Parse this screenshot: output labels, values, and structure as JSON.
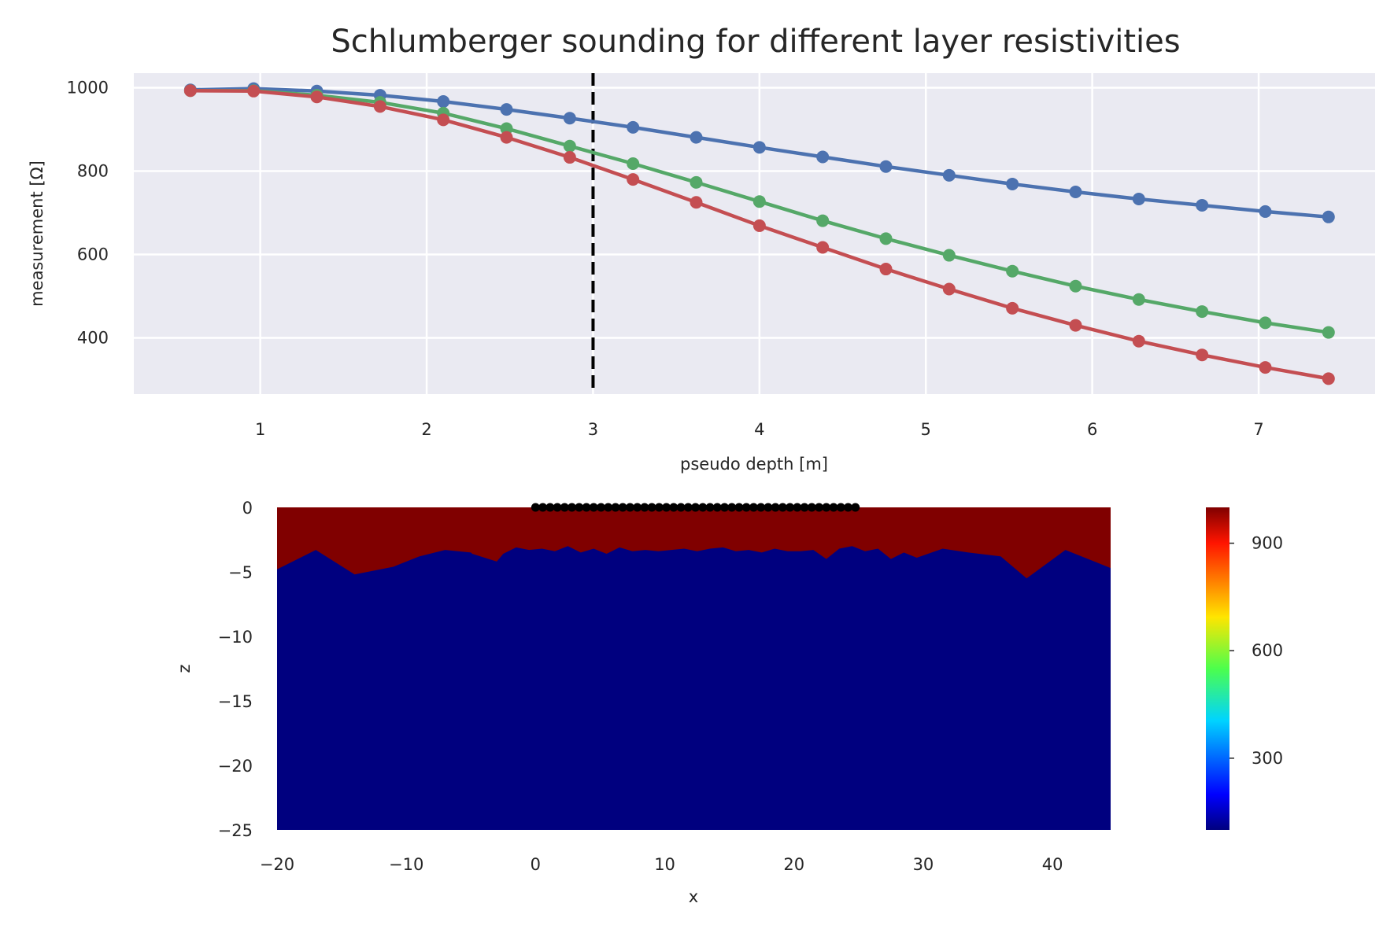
{
  "colors": {
    "background": "#ffffff",
    "axes_face": "#eaeaf2",
    "grid": "#ffffff",
    "series_blue": "#4c72b0",
    "series_green": "#55a868",
    "series_red": "#c44e52",
    "dashed_line": "#000000",
    "upper_layer": "#800000",
    "lower_layer": "#00007f",
    "electrodes": "#000000"
  },
  "chart_data": [
    {
      "type": "line",
      "title": "Schlumberger sounding for different layer resistivities",
      "xlabel": "pseudo depth [m]",
      "ylabel": "measurement [Ω]",
      "xlim": [
        0.24,
        7.7
      ],
      "ylim": [
        265,
        1035
      ],
      "xticks": [
        "1",
        "2",
        "3",
        "4",
        "5",
        "6",
        "7"
      ],
      "yticks": [
        "400",
        "600",
        "800",
        "1000"
      ],
      "grid": true,
      "marker": "circle",
      "annotations": [
        {
          "type": "vline",
          "x": 3.0,
          "style": "dashed"
        }
      ],
      "x": [
        0.58,
        0.96,
        1.34,
        1.72,
        2.1,
        2.48,
        2.86,
        3.24,
        3.62,
        4.0,
        4.38,
        4.76,
        5.14,
        5.52,
        5.9,
        6.28,
        6.66,
        7.04,
        7.42
      ],
      "series": [
        {
          "color_key": "series_blue",
          "values": [
            995,
            998,
            992,
            982,
            967,
            948,
            927,
            905,
            881,
            857,
            834,
            811,
            790,
            769,
            750,
            733,
            718,
            703,
            690
          ]
        },
        {
          "color_key": "series_green",
          "values": [
            993,
            993,
            982,
            965,
            939,
            902,
            860,
            818,
            773,
            727,
            681,
            638,
            598,
            560,
            524,
            492,
            463,
            436,
            413
          ]
        },
        {
          "color_key": "series_red",
          "values": [
            993,
            992,
            978,
            955,
            923,
            881,
            833,
            780,
            725,
            669,
            617,
            565,
            517,
            471,
            430,
            392,
            359,
            329,
            302
          ]
        }
      ]
    },
    {
      "type": "heatmap",
      "xlabel": "x",
      "ylabel": "z",
      "xlim": [
        -20,
        44.5
      ],
      "ylim": [
        -25,
        0
      ],
      "xticks": [
        "−20",
        "−10",
        "0",
        "10",
        "20",
        "30",
        "40"
      ],
      "yticks": [
        "0",
        "−5",
        "−10",
        "−15",
        "−20",
        "−25"
      ],
      "colorbar": {
        "range": [
          100,
          1000
        ],
        "ticks": [
          "300",
          "600",
          "900"
        ],
        "colormap": "jet"
      },
      "upper_layer_resistivity": 1000,
      "lower_layer_resistivity": 100,
      "interface": {
        "x": [
          -20,
          -17,
          -14,
          -11,
          -9,
          -7,
          -5,
          -4.9,
          -3,
          -2.5,
          -1.5,
          -0.5,
          0.5,
          1.5,
          2.5,
          3.5,
          4.5,
          5.5,
          6.5,
          7.5,
          8.5,
          9.5,
          10.5,
          11.5,
          12.5,
          13.5,
          14.5,
          15.5,
          16.5,
          17.5,
          18.5,
          19.5,
          20.5,
          21.5,
          22.5,
          23.5,
          24.5,
          25.5,
          26.5,
          27.5,
          28.5,
          29.5,
          31.5,
          33.5,
          36,
          38,
          41,
          44.5
        ],
        "z": [
          -4.8,
          -3.3,
          -5.2,
          -4.6,
          -3.8,
          -3.3,
          -3.5,
          -3.6,
          -4.2,
          -3.6,
          -3.1,
          -3.3,
          -3.2,
          -3.4,
          -3.0,
          -3.5,
          -3.2,
          -3.6,
          -3.1,
          -3.4,
          -3.3,
          -3.4,
          -3.3,
          -3.2,
          -3.4,
          -3.2,
          -3.1,
          -3.4,
          -3.3,
          -3.5,
          -3.2,
          -3.4,
          -3.4,
          -3.3,
          -4.0,
          -3.2,
          -3.0,
          -3.4,
          -3.2,
          -4.0,
          -3.5,
          -3.9,
          -3.2,
          -3.5,
          -3.8,
          -5.5,
          -3.3,
          -4.7
        ]
      },
      "electrodes": {
        "x_start": 0,
        "x_end": 24.75,
        "count": 45,
        "z": 0
      }
    }
  ]
}
